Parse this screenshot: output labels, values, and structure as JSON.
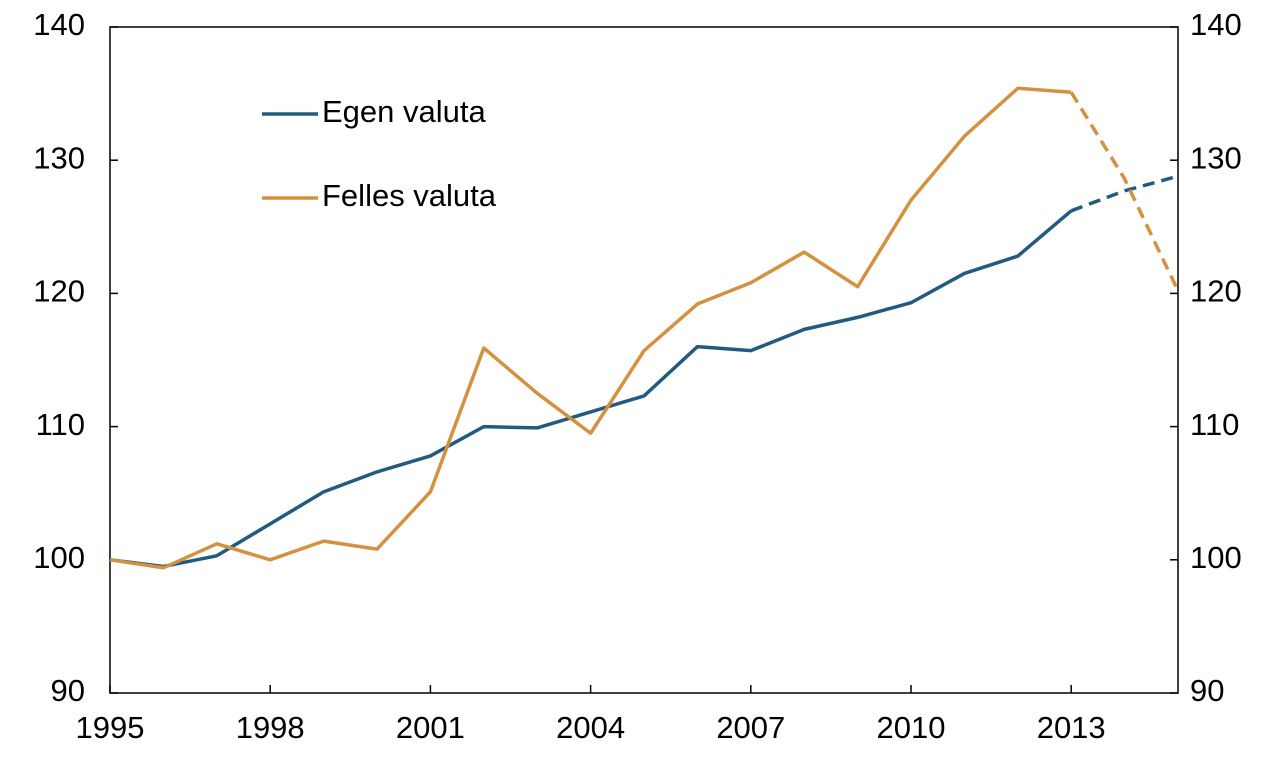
{
  "chart_data": {
    "type": "line",
    "x": [
      1995,
      1996,
      1997,
      1998,
      1999,
      2000,
      2001,
      2002,
      2003,
      2004,
      2005,
      2006,
      2007,
      2008,
      2009,
      2010,
      2011,
      2012,
      2013,
      2014,
      2015
    ],
    "series": [
      {
        "name": "Egen valuta",
        "color": "#215b80",
        "values": [
          100,
          99.5,
          100.3,
          102.7,
          105.1,
          106.6,
          107.8,
          110,
          109.9,
          111.1,
          112.3,
          116,
          115.7,
          117.3,
          118.2,
          119.3,
          121.5,
          122.8,
          126.2,
          127.7,
          128.8
        ]
      },
      {
        "name": "Felles valuta",
        "color": "#d4913f",
        "values": [
          100,
          99.4,
          101.2,
          100,
          101.4,
          100.8,
          105.1,
          115.9,
          112.5,
          109.5,
          115.7,
          119.2,
          120.8,
          123.1,
          120.5,
          127,
          131.8,
          135.4,
          135.1,
          128.6,
          120.2
        ]
      }
    ],
    "projection_start": 2013,
    "xlim": [
      1995,
      2015
    ],
    "xticks": [
      1995,
      1998,
      2001,
      2004,
      2007,
      2010,
      2013
    ],
    "ylim": [
      90,
      140
    ],
    "yticks": [
      90,
      100,
      110,
      120,
      130,
      140
    ],
    "y2lim": [
      90,
      140
    ],
    "y2ticks": [
      90,
      100,
      110,
      120,
      130,
      140
    ],
    "legend": "upper left",
    "grid": false
  }
}
